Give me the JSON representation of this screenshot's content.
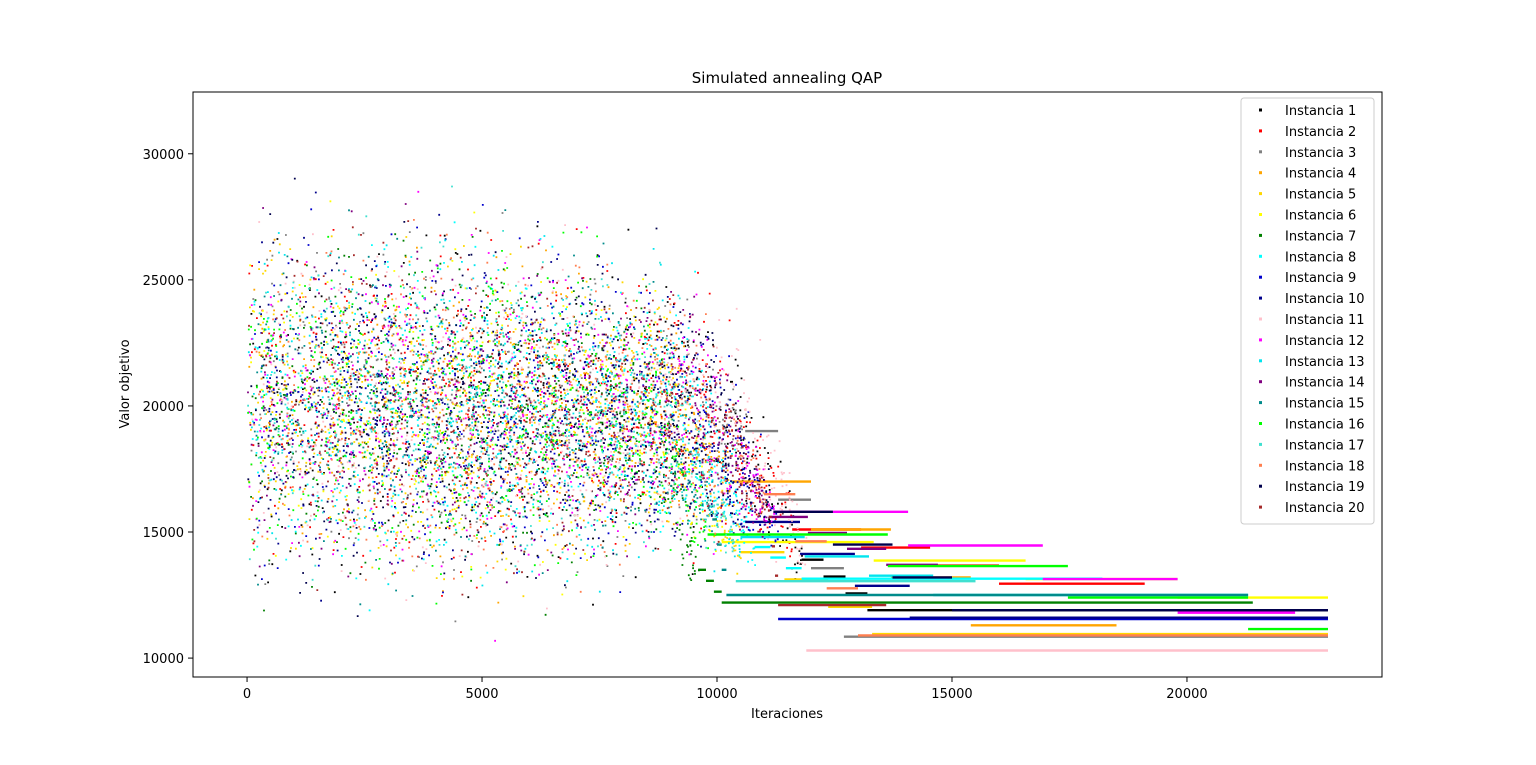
{
  "chart_data": {
    "type": "scatter",
    "title": "Simulated annealing QAP",
    "xlabel": "Iteraciones",
    "ylabel": "Valor objetivo",
    "xlim": [
      -1150,
      24150
    ],
    "ylim": [
      9250,
      32450
    ],
    "x_ticks": [
      0,
      5000,
      10000,
      15000,
      20000
    ],
    "y_ticks": [
      10000,
      15000,
      20000,
      25000,
      30000
    ],
    "x_tick_labels": [
      "0",
      "5000",
      "10000",
      "15000",
      "20000"
    ],
    "y_tick_labels": [
      "10000",
      "15000",
      "20000",
      "25000",
      "30000"
    ],
    "grid": false,
    "legend_position": "top-right",
    "marker": "point",
    "series": [
      {
        "name": "Instancia 1",
        "color": "#000000",
        "end_iter": 11800,
        "final_value": 13900,
        "plateau_from": 13200,
        "plateau_value": 11900,
        "last_iter": 23000
      },
      {
        "name": "Instancia 2",
        "color": "#ff0000",
        "end_iter": 11600,
        "final_value": 15100,
        "plateau_from": 16000,
        "plateau_value": 12950,
        "last_iter": 19100
      },
      {
        "name": "Instancia 3",
        "color": "#808080",
        "end_iter": 10600,
        "final_value": 19000,
        "plateau_from": 12700,
        "plateau_value": 10850,
        "last_iter": 23000
      },
      {
        "name": "Instancia 4",
        "color": "#ffa500",
        "end_iter": 10300,
        "final_value": 17000,
        "plateau_from": 15400,
        "plateau_value": 11300,
        "last_iter": 18500
      },
      {
        "name": "Instancia 5",
        "color": "#ffd700",
        "end_iter": 10500,
        "final_value": 14200,
        "plateau_from": 13300,
        "plateau_value": 10950,
        "last_iter": 23000
      },
      {
        "name": "Instancia 6",
        "color": "#ffff00",
        "end_iter": 10100,
        "final_value": 14600,
        "plateau_from": 19800,
        "plateau_value": 12400,
        "last_iter": 23000
      },
      {
        "name": "Instancia 7",
        "color": "#008000",
        "end_iter": 9600,
        "final_value": 13500,
        "plateau_from": 10100,
        "plateau_value": 12200,
        "last_iter": 21400
      },
      {
        "name": "Instancia 8",
        "color": "#00ffff",
        "end_iter": 10800,
        "final_value": 14400,
        "plateau_from": 11800,
        "plateau_value": 13150,
        "last_iter": 18200
      },
      {
        "name": "Instancia 9",
        "color": "#0000cd",
        "end_iter": 11300,
        "final_value": 15000,
        "plateau_from": 11300,
        "plateau_value": 11550,
        "last_iter": 23000
      },
      {
        "name": "Instancia 10",
        "color": "#00008b",
        "end_iter": 10600,
        "final_value": 15400,
        "plateau_from": 14100,
        "plateau_value": 11600,
        "last_iter": 23000
      },
      {
        "name": "Instancia 11",
        "color": "#ffc0cb",
        "end_iter": 11900,
        "final_value": 14000,
        "plateau_from": 11900,
        "plateau_value": 10300,
        "last_iter": 23000
      },
      {
        "name": "Instancia 12",
        "color": "#ff00ff",
        "end_iter": 11200,
        "final_value": 15800,
        "plateau_from": 19800,
        "plateau_value": 11800,
        "last_iter": 22300
      },
      {
        "name": "Instancia 13",
        "color": "#00e5ee",
        "end_iter": 10500,
        "final_value": 14800,
        "plateau_from": 14600,
        "plateau_value": 12500,
        "last_iter": 21300
      },
      {
        "name": "Instancia 14",
        "color": "#800080",
        "end_iter": 11100,
        "final_value": 15600,
        "plateau_from": 13600,
        "plateau_value": 13700,
        "last_iter": 14700
      },
      {
        "name": "Instancia 15",
        "color": "#008b8b",
        "end_iter": 9900,
        "final_value": 15500,
        "plateau_from": 10200,
        "plateau_value": 12500,
        "last_iter": 21300
      },
      {
        "name": "Instancia 16",
        "color": "#00ff00",
        "end_iter": 9800,
        "final_value": 14900,
        "plateau_from": 21300,
        "plateau_value": 11150,
        "last_iter": 23000
      },
      {
        "name": "Instancia 17",
        "color": "#40e0d0",
        "end_iter": 10400,
        "final_value": 14500,
        "plateau_from": 10400,
        "plateau_value": 13050,
        "last_iter": 15500
      },
      {
        "name": "Instancia 18",
        "color": "#ff7f50",
        "end_iter": 11000,
        "final_value": 16500,
        "plateau_from": 13000,
        "plateau_value": 10900,
        "last_iter": 23000
      },
      {
        "name": "Instancia 19",
        "color": "#00004d",
        "end_iter": 11200,
        "final_value": 15800,
        "plateau_from": 15000,
        "plateau_value": 11900,
        "last_iter": 23000
      },
      {
        "name": "Instancia 20",
        "color": "#a52a2a",
        "end_iter": 11100,
        "final_value": 15600,
        "plateau_from": 11300,
        "plateau_value": 12100,
        "last_iter": 13600
      }
    ]
  }
}
